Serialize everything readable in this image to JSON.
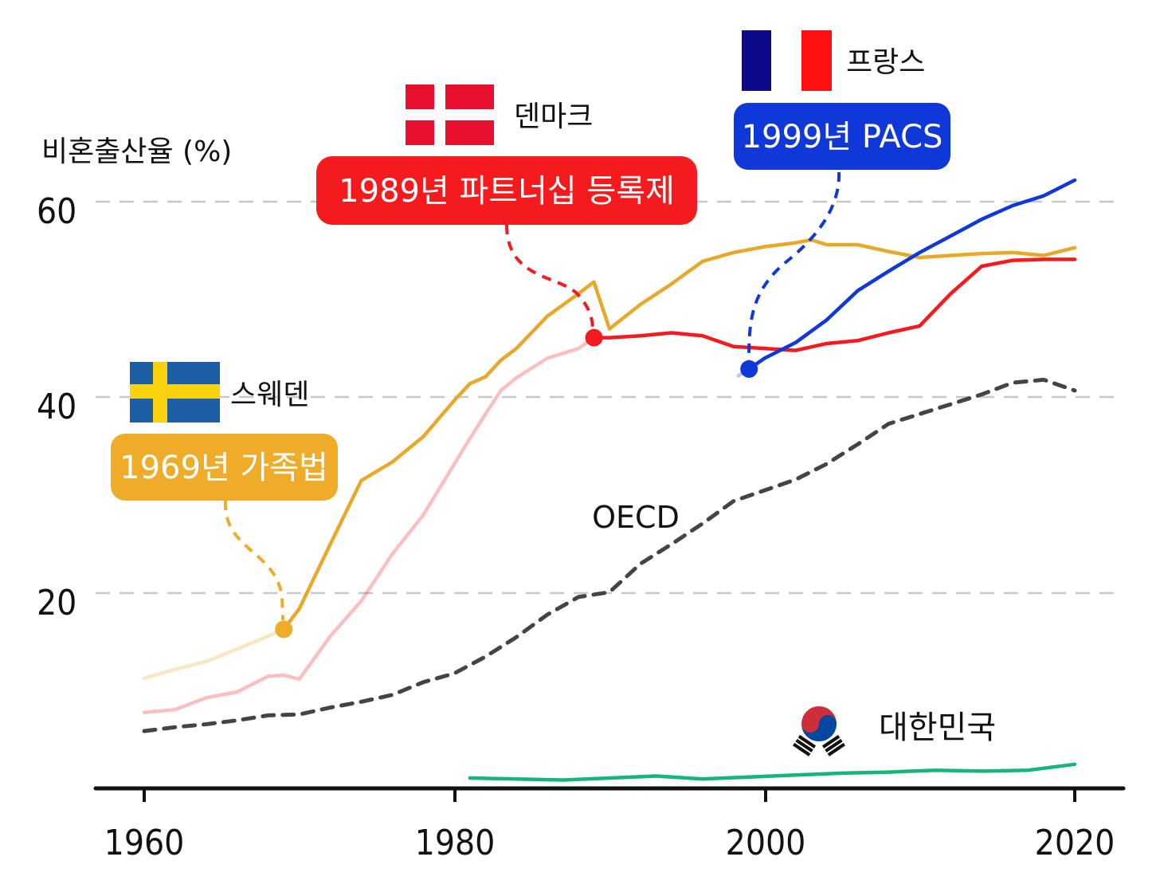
{
  "chart_data": {
    "type": "line",
    "ylabel": "비혼출산율 (%)",
    "x_ticks": [
      "1960",
      "1980",
      "2000",
      "2020"
    ],
    "y_ticks": [
      "20",
      "40",
      "60"
    ],
    "xlim": [
      1957,
      2023
    ],
    "ylim": [
      0,
      64
    ],
    "grid": "horizontal dashed",
    "series": [
      {
        "name": "스웨덴",
        "color": "#e8a82a",
        "x": [
          1960,
          1962,
          1964,
          1966,
          1968,
          1969,
          1970,
          1972,
          1974,
          1976,
          1978,
          1980,
          1981,
          1982,
          1983,
          1984,
          1986,
          1988,
          1989,
          1990,
          1992,
          1994,
          1996,
          1998,
          2000,
          2002,
          2003,
          2004,
          2006,
          2008,
          2010,
          2012,
          2014,
          2016,
          2018,
          2020
        ],
        "y": [
          11.3,
          12.2,
          13.0,
          14.3,
          15.6,
          16.3,
          18.4,
          25.0,
          31.5,
          33.4,
          36.0,
          39.7,
          41.4,
          42.1,
          43.8,
          45.0,
          48.3,
          50.6,
          51.8,
          47.0,
          49.5,
          51.6,
          53.9,
          54.8,
          55.4,
          55.8,
          56.1,
          55.6,
          55.6,
          54.9,
          54.3,
          54.5,
          54.7,
          54.8,
          54.5,
          55.3
        ]
      },
      {
        "name": "덴마크",
        "color": "#f51a1e",
        "x": [
          1960,
          1962,
          1964,
          1966,
          1968,
          1969,
          1970,
          1972,
          1974,
          1976,
          1978,
          1980,
          1981,
          1982,
          1983,
          1984,
          1986,
          1988,
          1989,
          1990,
          1992,
          1994,
          1996,
          1998,
          2000,
          2002,
          2004,
          2006,
          2008,
          2010,
          2012,
          2014,
          2016,
          2018,
          2020
        ],
        "y": [
          7.8,
          8.1,
          9.3,
          9.9,
          11.5,
          11.6,
          11.2,
          15.6,
          19.2,
          24.0,
          28.0,
          33.2,
          35.8,
          38.3,
          40.7,
          42.0,
          44.0,
          45.0,
          46.1,
          46.1,
          46.3,
          46.6,
          46.3,
          45.2,
          45.0,
          44.8,
          45.5,
          45.8,
          46.6,
          47.3,
          50.6,
          53.4,
          54.0,
          54.1,
          54.1
        ]
      },
      {
        "name": "프랑스",
        "color": "#1038d8",
        "x": [
          1999,
          2000,
          2002,
          2004,
          2006,
          2008,
          2010,
          2012,
          2014,
          2016,
          2018,
          2020
        ],
        "y": [
          42.9,
          44.0,
          45.6,
          47.9,
          50.9,
          52.9,
          54.8,
          56.5,
          58.2,
          59.6,
          60.6,
          62.2
        ]
      },
      {
        "name": "OECD",
        "color": "#444444",
        "x": [
          1960,
          1962,
          1964,
          1966,
          1968,
          1970,
          1972,
          1974,
          1976,
          1978,
          1980,
          1982,
          1984,
          1986,
          1988,
          1990,
          1992,
          1994,
          1996,
          1998,
          2000,
          2002,
          2004,
          2006,
          2008,
          2010,
          2012,
          2014,
          2016,
          2018,
          2020
        ],
        "y": [
          5.9,
          6.3,
          6.6,
          7.0,
          7.5,
          7.6,
          8.3,
          8.9,
          9.6,
          10.9,
          11.8,
          13.5,
          15.5,
          17.8,
          19.6,
          20.1,
          23.0,
          25.0,
          27.1,
          29.4,
          30.5,
          31.6,
          33.2,
          35.2,
          37.3,
          38.3,
          39.3,
          40.3,
          41.5,
          41.8,
          40.7
        ]
      },
      {
        "name": "대한민국",
        "color": "#17b57a",
        "x": [
          1981,
          1984,
          1987,
          1990,
          1993,
          1996,
          1999,
          2002,
          2005,
          2008,
          2011,
          2014,
          2017,
          2020
        ],
        "y": [
          1.1,
          1.0,
          0.9,
          1.1,
          1.3,
          1.0,
          1.2,
          1.4,
          1.6,
          1.7,
          1.9,
          1.8,
          1.9,
          2.5
        ]
      }
    ],
    "annotations": [
      {
        "country": "스웨덴",
        "event": "1969년 가족법",
        "x": 1969,
        "y": 16.3,
        "color": "#eeac29"
      },
      {
        "country": "덴마크",
        "event": "1989년 파트너십 등록제",
        "x": 1989,
        "y": 46.1,
        "color": "#f51a1e"
      },
      {
        "country": "프랑스",
        "event": "1999년 PACS",
        "x": 1999,
        "y": 42.9,
        "color": "#1038d8"
      }
    ],
    "inline_labels": [
      {
        "text": "OECD"
      },
      {
        "text": "대한민국"
      }
    ]
  }
}
